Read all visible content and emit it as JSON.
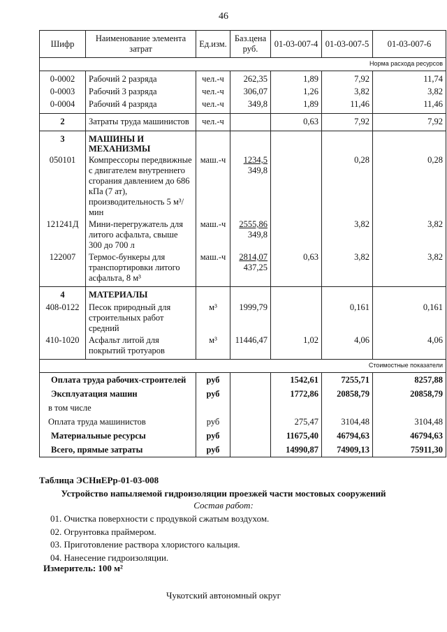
{
  "page_number": "46",
  "table": {
    "header": [
      "Шифр",
      "Наименование элемента затрат",
      "Ед.изм.",
      "Баз.цена руб.",
      "01-03-007-4",
      "01-03-007-5",
      "01-03-007-6"
    ],
    "norm_label": "Норма расхода ресурсов",
    "groups": [
      [
        {
          "code": "0-0002",
          "name": "Рабочий 2 разряда",
          "unit": "чел.-ч",
          "price": "262,35",
          "c4": "1,89",
          "c5": "7,92",
          "c6": "11,74"
        },
        {
          "code": "0-0003",
          "name": "Рабочий 3 разряда",
          "unit": "чел.-ч",
          "price": "306,07",
          "c4": "1,26",
          "c5": "3,82",
          "c6": "3,82"
        },
        {
          "code": "0-0004",
          "name": "Рабочий 4 разряда",
          "unit": "чел.-ч",
          "price": "349,8",
          "c4": "1,89",
          "c5": "11,46",
          "c6": "11,46"
        }
      ],
      [
        {
          "code": "2",
          "name": "Затраты труда машинистов",
          "unit": "чел.-ч",
          "c4": "0,63",
          "c5": "7,92",
          "c6": "7,92"
        }
      ],
      [
        {
          "code": "3",
          "name": "МАШИНЫ И МЕХАНИЗМЫ",
          "heading": true
        },
        {
          "code": "050101",
          "name": "Компрессоры передвижные с двигателем внутреннего сгорания давлением до 686 кПа (7 ат), производительность 5 м³/мин",
          "unit": "маш.-ч",
          "price": [
            "1234,5",
            "349,8"
          ],
          "c5": "0,28",
          "c6": "0,28"
        },
        {
          "code": "121241Д",
          "name": "Мини-перегружатель для литого асфальта, свыше 300 до 700 л",
          "unit": "маш.-ч",
          "price": [
            "2555,86",
            "349,8"
          ],
          "c5": "3,82",
          "c6": "3,82"
        },
        {
          "code": "122007",
          "name": "Термос-бункеры для транспортировки литого асфальта, 8 м³",
          "unit": "маш.-ч",
          "price": [
            "2814,07",
            "437,25"
          ],
          "c4": "0,63",
          "c5": "3,82",
          "c6": "3,82"
        }
      ],
      [
        {
          "code": "4",
          "name": "МАТЕРИАЛЫ",
          "heading": true
        },
        {
          "code": "408-0122",
          "name": "Песок природный для строительных работ средний",
          "unit": "м³",
          "price": "1999,79",
          "c5": "0,161",
          "c6": "0,161"
        },
        {
          "code": "410-1020",
          "name": "Асфальт литой для покрытий тротуаров",
          "unit": "м³",
          "price": "11446,47",
          "c4": "1,02",
          "c5": "4,06",
          "c6": "4,06"
        }
      ]
    ],
    "cost_label": "Стоимостные показатели",
    "cost_rows": [
      {
        "name": "Оплата труда рабочих-строителей",
        "unit": "руб",
        "c4": "1542,61",
        "c5": "7255,71",
        "c6": "8257,88",
        "bold": true
      },
      {
        "name": "Эксплуатация машин",
        "unit": "руб",
        "c4": "1772,86",
        "c5": "20858,79",
        "c6": "20858,79",
        "bold": true
      },
      {
        "name": "в том числе"
      },
      {
        "name": "Оплата труда машинистов",
        "unit": "руб",
        "c4": "275,47",
        "c5": "3104,48",
        "c6": "3104,48"
      },
      {
        "name": "Материальные ресурсы",
        "unit": "руб",
        "c4": "11675,40",
        "c5": "46794,63",
        "c6": "46794,63",
        "bold": true
      },
      {
        "name": "Всего, прямые затраты",
        "unit": "руб",
        "c4": "14990,87",
        "c5": "74909,13",
        "c6": "75911,30",
        "bold": true
      }
    ]
  },
  "next_table": {
    "id": "Таблица  ЭСНиЕРр-01-03-008",
    "title": "Устройство напыляемой гидроизоляции проезжей части мостовых сооружений",
    "composition_title": "Состав работ:",
    "steps": [
      "01. Очистка поверхности с продувкой сжатым воздухом.",
      "02. Огрунтовка праймером.",
      "03. Приготовление раствора хлористого кальция.",
      "04. Нанесение гидроизоляции."
    ],
    "meter": "Измеритель: 100 м²"
  },
  "footer": "Чукотский автономный округ"
}
